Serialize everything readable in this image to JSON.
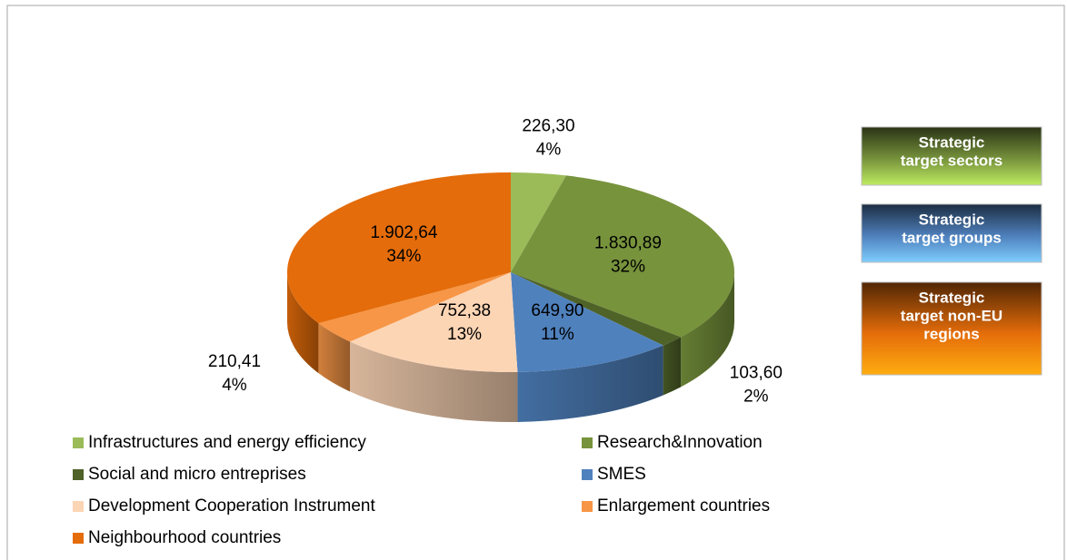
{
  "chart_data": {
    "type": "pie3d",
    "categories": [
      "Infrastructures and energy efficiency",
      "Research&Innovation",
      "Social and micro entreprises",
      "SMES",
      "Development Cooperation Instrument",
      "Enlargement countries",
      "Neighbourhood countries"
    ],
    "values": [
      226.3,
      1830.89,
      103.6,
      649.9,
      752.38,
      210.41,
      1902.64
    ],
    "value_labels": [
      "226,30",
      "1.830,89",
      "103,60",
      "649,90",
      "752,38",
      "210,41",
      "1.902,64"
    ],
    "percents": [
      4,
      32,
      2,
      11,
      13,
      4,
      34
    ],
    "percent_labels": [
      "4%",
      "32%",
      "2%",
      "11%",
      "13%",
      "4%",
      "34%"
    ],
    "colors": [
      "#9bbb59",
      "#77933c",
      "#4f6228",
      "#4f81bd",
      "#fcd5b5",
      "#f79646",
      "#e46c0a"
    ],
    "groups": [
      {
        "lines": [
          "Strategic",
          "target sectors"
        ],
        "color": "#77933c"
      },
      {
        "lines": [
          "Strategic",
          "target groups"
        ],
        "color": "#4f81bd"
      },
      {
        "lines": [
          "Strategic",
          "target non-EU",
          "regions"
        ],
        "color": "#e46c0a"
      }
    ]
  }
}
